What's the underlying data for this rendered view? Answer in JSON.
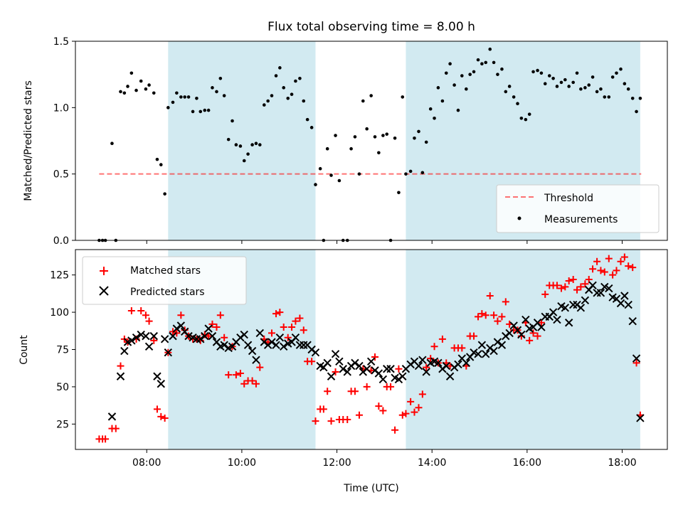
{
  "title": "Flux total observing time = 8.00 h",
  "colors": {
    "shade": "#add8e6",
    "threshold": "#ff0000",
    "matched": "#ff0000",
    "predicted": "#000000",
    "measurement": "#000000"
  },
  "chart_data": [
    {
      "type": "scatter",
      "panel": "top",
      "ylabel": "Matched/Predicted stars",
      "xlim": [
        6.5,
        18.95
      ],
      "ylim": [
        0,
        1.5
      ],
      "yticks": [
        0.0,
        0.5,
        1.0,
        1.5
      ],
      "ytick_labels": [
        "0.0",
        "0.5",
        "1.0",
        "1.5"
      ],
      "shaded_intervals": [
        [
          8.45,
          11.55
        ],
        [
          13.45,
          18.38
        ]
      ],
      "threshold": {
        "name": "Threshold",
        "y": 0.5,
        "x_range": [
          7.0,
          18.4
        ]
      },
      "legend": {
        "position": "lower-right",
        "entries": [
          "Threshold",
          "Measurements"
        ]
      },
      "series": [
        {
          "name": "Measurements",
          "marker": "dot",
          "x": [
            7.0,
            7.07,
            7.13,
            7.27,
            7.35,
            7.45,
            7.53,
            7.6,
            7.68,
            7.78,
            7.88,
            7.98,
            8.05,
            8.15,
            8.22,
            8.3,
            8.38,
            8.45,
            8.55,
            8.63,
            8.72,
            8.8,
            8.88,
            8.97,
            9.05,
            9.13,
            9.22,
            9.3,
            9.38,
            9.47,
            9.55,
            9.63,
            9.72,
            9.8,
            9.88,
            9.97,
            10.05,
            10.13,
            10.22,
            10.3,
            10.38,
            10.47,
            10.55,
            10.63,
            10.72,
            10.8,
            10.88,
            10.97,
            11.05,
            11.13,
            11.22,
            11.3,
            11.38,
            11.47,
            11.55,
            11.65,
            11.72,
            11.8,
            11.88,
            11.97,
            12.05,
            12.13,
            12.22,
            12.3,
            12.38,
            12.47,
            12.55,
            12.63,
            12.72,
            12.8,
            12.88,
            12.97,
            13.05,
            13.13,
            13.22,
            13.3,
            13.38,
            13.45,
            13.55,
            13.63,
            13.72,
            13.8,
            13.88,
            13.97,
            14.05,
            14.13,
            14.22,
            14.3,
            14.38,
            14.47,
            14.55,
            14.63,
            14.72,
            14.8,
            14.88,
            14.97,
            15.05,
            15.13,
            15.22,
            15.3,
            15.38,
            15.47,
            15.55,
            15.63,
            15.72,
            15.8,
            15.88,
            15.97,
            16.05,
            16.13,
            16.22,
            16.3,
            16.38,
            16.47,
            16.55,
            16.63,
            16.72,
            16.8,
            16.88,
            16.97,
            17.05,
            17.13,
            17.22,
            17.3,
            17.38,
            17.47,
            17.55,
            17.63,
            17.72,
            17.8,
            17.88,
            17.97,
            18.05,
            18.13,
            18.22,
            18.3,
            18.38
          ],
          "y": [
            0.0,
            0.0,
            0.0,
            0.73,
            0.0,
            1.12,
            1.11,
            1.16,
            1.26,
            1.13,
            1.2,
            1.14,
            1.17,
            1.11,
            0.61,
            0.57,
            0.35,
            1.0,
            1.04,
            1.11,
            1.08,
            1.08,
            1.08,
            0.97,
            1.07,
            0.97,
            0.98,
            0.98,
            1.15,
            1.12,
            1.22,
            1.09,
            0.76,
            0.9,
            0.72,
            0.71,
            0.6,
            0.65,
            0.72,
            0.73,
            0.72,
            1.02,
            1.05,
            1.09,
            1.24,
            1.3,
            1.15,
            1.07,
            1.1,
            1.2,
            1.22,
            1.05,
            0.91,
            0.85,
            0.42,
            0.54,
            0.0,
            0.69,
            0.49,
            0.79,
            0.45,
            0.0,
            0.0,
            0.69,
            0.78,
            0.5,
            1.05,
            0.84,
            1.09,
            0.78,
            0.66,
            0.79,
            0.8,
            0.0,
            0.77,
            0.36,
            1.08,
            0.5,
            0.52,
            0.77,
            0.82,
            0.51,
            0.74,
            0.99,
            0.92,
            1.15,
            1.05,
            1.26,
            1.33,
            1.17,
            0.98,
            1.24,
            1.14,
            1.25,
            1.27,
            1.36,
            1.33,
            1.34,
            1.44,
            1.34,
            1.25,
            1.29,
            1.12,
            1.16,
            1.08,
            1.03,
            0.92,
            0.91,
            0.95,
            1.27,
            1.28,
            1.26,
            1.18,
            1.24,
            1.22,
            1.16,
            1.19,
            1.21,
            1.16,
            1.19,
            1.26,
            1.14,
            1.15,
            1.17,
            1.23,
            1.12,
            1.14,
            1.08,
            1.08,
            1.23,
            1.26,
            1.29,
            1.18,
            1.14,
            1.07,
            0.97,
            1.07
          ]
        }
      ]
    },
    {
      "type": "scatter",
      "panel": "bottom",
      "xlabel": "Time (UTC)",
      "ylabel": "Count",
      "xlim": [
        6.5,
        18.95
      ],
      "ylim": [
        8,
        142
      ],
      "xticks": [
        8,
        10,
        12,
        14,
        16,
        18
      ],
      "xtick_labels": [
        "08:00",
        "10:00",
        "12:00",
        "14:00",
        "16:00",
        "18:00"
      ],
      "yticks": [
        25,
        50,
        75,
        100,
        125
      ],
      "ytick_labels": [
        "25",
        "50",
        "75",
        "100",
        "125"
      ],
      "shaded_intervals": [
        [
          8.45,
          11.55
        ],
        [
          13.45,
          18.38
        ]
      ],
      "legend": {
        "position": "upper-left",
        "entries": [
          "Matched stars",
          "Predicted stars"
        ]
      },
      "series": [
        {
          "name": "Matched stars",
          "marker": "plus",
          "x": [
            7.0,
            7.07,
            7.13,
            7.27,
            7.35,
            7.45,
            7.53,
            7.6,
            7.68,
            7.78,
            7.88,
            7.98,
            8.05,
            8.15,
            8.22,
            8.3,
            8.38,
            8.45,
            8.55,
            8.63,
            8.72,
            8.8,
            8.88,
            8.97,
            9.05,
            9.13,
            9.22,
            9.3,
            9.38,
            9.47,
            9.55,
            9.63,
            9.72,
            9.8,
            9.88,
            9.97,
            10.05,
            10.13,
            10.22,
            10.3,
            10.38,
            10.47,
            10.55,
            10.63,
            10.72,
            10.8,
            10.88,
            10.97,
            11.05,
            11.13,
            11.22,
            11.3,
            11.38,
            11.47,
            11.55,
            11.65,
            11.72,
            11.8,
            11.88,
            11.97,
            12.05,
            12.13,
            12.22,
            12.3,
            12.38,
            12.47,
            12.55,
            12.63,
            12.72,
            12.8,
            12.88,
            12.97,
            13.05,
            13.13,
            13.22,
            13.3,
            13.38,
            13.45,
            13.55,
            13.63,
            13.72,
            13.8,
            13.88,
            13.97,
            14.05,
            14.13,
            14.22,
            14.3,
            14.38,
            14.47,
            14.55,
            14.63,
            14.72,
            14.8,
            14.88,
            14.97,
            15.05,
            15.13,
            15.22,
            15.3,
            15.38,
            15.47,
            15.55,
            15.63,
            15.72,
            15.8,
            15.88,
            15.97,
            16.05,
            16.13,
            16.22,
            16.3,
            16.38,
            16.47,
            16.55,
            16.63,
            16.72,
            16.8,
            16.88,
            16.97,
            17.05,
            17.13,
            17.22,
            17.3,
            17.38,
            17.47,
            17.55,
            17.63,
            17.72,
            17.8,
            17.88,
            17.97,
            18.05,
            18.13,
            18.22,
            18.3,
            18.38
          ],
          "y": [
            15,
            15,
            15,
            22,
            22,
            64,
            82,
            80,
            101,
            82,
            101,
            98,
            94,
            81,
            35,
            30,
            29,
            73,
            87,
            86,
            98,
            88,
            84,
            82,
            82,
            81,
            85,
            84,
            92,
            90,
            98,
            83,
            58,
            77,
            58,
            59,
            52,
            54,
            54,
            52,
            63,
            82,
            80,
            86,
            99,
            100,
            90,
            83,
            90,
            94,
            96,
            88,
            67,
            67,
            27,
            35,
            35,
            47,
            27,
            60,
            28,
            28,
            28,
            47,
            47,
            31,
            62,
            50,
            61,
            70,
            37,
            34,
            50,
            50,
            21,
            62,
            31,
            32,
            40,
            33,
            36,
            45,
            63,
            69,
            77,
            66,
            82,
            66,
            64,
            76,
            76,
            76,
            64,
            84,
            84,
            97,
            99,
            98,
            111,
            98,
            94,
            97,
            107,
            92,
            88,
            88,
            84,
            93,
            81,
            86,
            84,
            93,
            112,
            118,
            118,
            118,
            116,
            117,
            121,
            122,
            115,
            117,
            119,
            122,
            129,
            134,
            128,
            127,
            136,
            125,
            128,
            134,
            137,
            131,
            130,
            66,
            31
          ]
        },
        {
          "name": "Predicted stars",
          "marker": "x",
          "x": [
            7.0,
            7.07,
            7.13,
            7.27,
            7.35,
            7.45,
            7.53,
            7.6,
            7.68,
            7.78,
            7.88,
            7.98,
            8.05,
            8.15,
            8.22,
            8.3,
            8.38,
            8.45,
            8.55,
            8.63,
            8.72,
            8.8,
            8.88,
            8.97,
            9.05,
            9.13,
            9.22,
            9.3,
            9.38,
            9.47,
            9.55,
            9.63,
            9.72,
            9.8,
            9.88,
            9.97,
            10.05,
            10.13,
            10.22,
            10.3,
            10.38,
            10.47,
            10.55,
            10.63,
            10.72,
            10.8,
            10.88,
            10.97,
            11.05,
            11.13,
            11.22,
            11.3,
            11.38,
            11.47,
            11.55,
            11.65,
            11.72,
            11.8,
            11.88,
            11.97,
            12.05,
            12.13,
            12.22,
            12.3,
            12.38,
            12.47,
            12.55,
            12.63,
            12.72,
            12.8,
            12.88,
            12.97,
            13.05,
            13.13,
            13.22,
            13.3,
            13.38,
            13.45,
            13.55,
            13.63,
            13.72,
            13.8,
            13.88,
            13.97,
            14.05,
            14.13,
            14.22,
            14.3,
            14.38,
            14.47,
            14.55,
            14.63,
            14.72,
            14.8,
            14.88,
            14.97,
            15.05,
            15.13,
            15.22,
            15.3,
            15.38,
            15.47,
            15.55,
            15.63,
            15.72,
            15.8,
            15.88,
            15.97,
            16.05,
            16.13,
            16.22,
            16.3,
            16.38,
            16.47,
            16.55,
            16.63,
            16.72,
            16.8,
            16.88,
            16.97,
            17.05,
            17.13,
            17.22,
            17.3,
            17.38,
            17.47,
            17.55,
            17.63,
            17.72,
            17.8,
            17.88,
            17.97,
            18.05,
            18.13,
            18.22,
            18.3,
            18.38
          ],
          "y": [
            null,
            null,
            null,
            30,
            null,
            57,
            74,
            80,
            81,
            83,
            85,
            84,
            77,
            84,
            57,
            52,
            82,
            73,
            84,
            89,
            91,
            87,
            84,
            83,
            82,
            82,
            84,
            89,
            84,
            80,
            77,
            78,
            76,
            77,
            80,
            83,
            85,
            78,
            74,
            68,
            86,
            80,
            78,
            80,
            78,
            83,
            77,
            79,
            80,
            83,
            78,
            78,
            78,
            75,
            73,
            64,
            63,
            66,
            57,
            72,
            67,
            62,
            60,
            64,
            66,
            64,
            60,
            62,
            67,
            61,
            59,
            55,
            62,
            62,
            56,
            55,
            57,
            62,
            65,
            67,
            64,
            68,
            60,
            66,
            67,
            66,
            62,
            64,
            57,
            63,
            65,
            69,
            66,
            70,
            73,
            72,
            78,
            72,
            76,
            74,
            80,
            78,
            84,
            86,
            91,
            88,
            85,
            95,
            89,
            90,
            93,
            90,
            97,
            97,
            100,
            95,
            104,
            103,
            93,
            105,
            105,
            103,
            108,
            115,
            118,
            113,
            113,
            117,
            116,
            110,
            109,
            106,
            111,
            105,
            94,
            69,
            29
          ]
        }
      ]
    }
  ]
}
